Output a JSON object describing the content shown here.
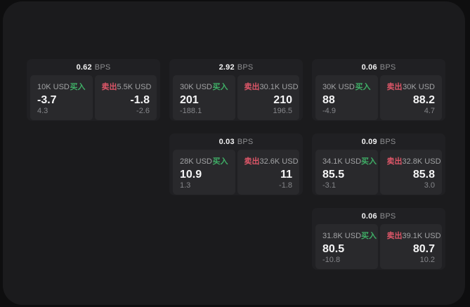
{
  "labels": {
    "bps": "BPS",
    "buy": "买入",
    "sell": "卖出"
  },
  "colors": {
    "buy_green": "#3fae66",
    "sell_red": "#dd5668",
    "page_bg": "#0e0e0f",
    "container_bg": "#1b1b1d",
    "card_bg": "#202023",
    "panel_bg": "#29292c"
  },
  "cards": [
    {
      "bps": "0.62",
      "buy": {
        "size": "10K USD",
        "price": "-3.7",
        "change": "4.3"
      },
      "sell": {
        "size": "5.5K USD",
        "price": "-1.8",
        "change": "-2.6"
      }
    },
    {
      "bps": "2.92",
      "buy": {
        "size": "30K USD",
        "price": "201",
        "change": "-188.1"
      },
      "sell": {
        "size": "30.1K USD",
        "price": "210",
        "change": "196.5"
      }
    },
    {
      "bps": "0.06",
      "buy": {
        "size": "30K USD",
        "price": "88",
        "change": "-4.9"
      },
      "sell": {
        "size": "30K USD",
        "price": "88.2",
        "change": "4.7"
      }
    },
    {
      "bps": "0.03",
      "buy": {
        "size": "28K USD",
        "price": "10.9",
        "change": "1.3"
      },
      "sell": {
        "size": "32.6K USD",
        "price": "11",
        "change": "-1.8"
      }
    },
    {
      "bps": "0.09",
      "buy": {
        "size": "34.1K USD",
        "price": "85.5",
        "change": "-3.1"
      },
      "sell": {
        "size": "32.8K USD",
        "price": "85.8",
        "change": "3.0"
      }
    },
    {
      "bps": "0.06",
      "buy": {
        "size": "31.8K USD",
        "price": "80.5",
        "change": "-10.8"
      },
      "sell": {
        "size": "39.1K USD",
        "price": "80.7",
        "change": "10.2"
      }
    }
  ]
}
